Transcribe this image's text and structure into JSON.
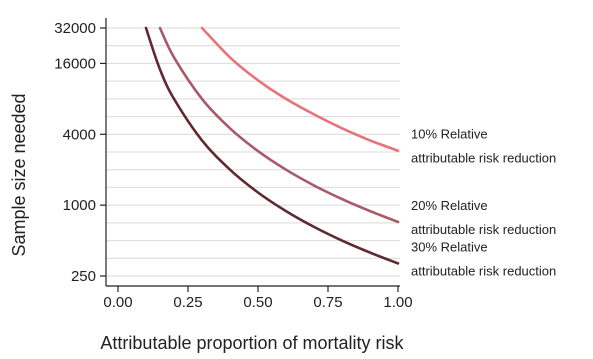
{
  "chart_data": {
    "type": "line",
    "title": "",
    "xlabel": "Attributable proportion of mortality risk",
    "ylabel": "Sample size needed",
    "x_scale": "linear",
    "y_scale": "log",
    "xlim": [
      0.0,
      1.0
    ],
    "ylim": [
      200,
      40000
    ],
    "x_ticks": [
      0.0,
      0.25,
      0.5,
      0.75,
      1.0
    ],
    "x_tick_labels": [
      "0.00",
      "0.25",
      "0.50",
      "0.75",
      "1.00"
    ],
    "y_ticks": [
      250,
      1000,
      4000,
      16000,
      32000
    ],
    "y_tick_labels": [
      "250",
      "1000",
      "4000",
      "16000",
      "32000"
    ],
    "grid": "horizontal",
    "legend": "direct labels at right end of lines",
    "series": [
      {
        "name": "10% Relative attributable risk reduction",
        "label_lines": [
          "10% Relative",
          "attributable risk reduction"
        ],
        "color": "#e8727a",
        "x": [
          0.3,
          0.4,
          0.5,
          0.6,
          0.7,
          0.8,
          0.9,
          1.0
        ],
        "y": [
          32000,
          18000,
          11500,
          8000,
          5900,
          4500,
          3550,
          2900
        ]
      },
      {
        "name": "20% Relative attributable risk reduction",
        "label_lines": [
          "20% Relative",
          "attributable risk reduction"
        ],
        "color": "#a85a68",
        "x": [
          0.15,
          0.2,
          0.3,
          0.4,
          0.5,
          0.6,
          0.7,
          0.8,
          0.9,
          1.0
        ],
        "y": [
          32000,
          18000,
          8000,
          4500,
          2880,
          2000,
          1470,
          1125,
          890,
          720
        ]
      },
      {
        "name": "30% Relative attributable risk reduction",
        "label_lines": [
          "30% Relative",
          "attributable risk reduction"
        ],
        "color": "#5e2a30",
        "x": [
          0.1,
          0.15,
          0.2,
          0.3,
          0.4,
          0.5,
          0.6,
          0.7,
          0.8,
          0.9,
          1.0
        ],
        "y": [
          32000,
          14200,
          8000,
          3550,
          2000,
          1280,
          890,
          653,
          500,
          395,
          320
        ]
      }
    ]
  }
}
